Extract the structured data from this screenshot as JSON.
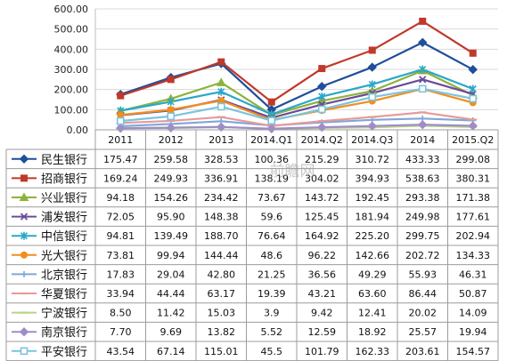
{
  "watermark": "前瞻网",
  "chart_data": {
    "type": "line",
    "title": "",
    "xlabel": "",
    "ylabel": "",
    "categories": [
      "2011",
      "2012",
      "2013",
      "2014.Q1",
      "2014.Q2",
      "2014.Q3",
      "2014",
      "2015.Q2"
    ],
    "ylim": [
      0,
      600
    ],
    "yticks": [
      "0.00",
      "100.00",
      "200.00",
      "300.00",
      "400.00",
      "500.00",
      "600.00"
    ],
    "grid": true,
    "legend": "data-table-left",
    "series": [
      {
        "name": "民生银行",
        "color": "#1f4e9a",
        "marker": "diamond",
        "values": [
          175.47,
          259.58,
          328.53,
          100.36,
          215.29,
          310.72,
          433.33,
          299.08
        ],
        "labels": [
          "175.47",
          "259.58",
          "328.53",
          "100.36",
          "215.29",
          "310.72",
          "433.33",
          "299.08"
        ]
      },
      {
        "name": "招商银行",
        "color": "#c0392b",
        "marker": "square",
        "values": [
          169.24,
          249.93,
          336.91,
          138.19,
          304.02,
          394.93,
          538.63,
          380.31
        ],
        "labels": [
          "169.24",
          "249.93",
          "336.91",
          "138.19",
          "304.02",
          "394.93",
          "538.63",
          "380.31"
        ]
      },
      {
        "name": "兴业银行",
        "color": "#8db33a",
        "marker": "triangle",
        "values": [
          94.18,
          154.26,
          234.42,
          73.67,
          143.72,
          192.45,
          293.38,
          171.38
        ],
        "labels": [
          "94.18",
          "154.26",
          "234.42",
          "73.67",
          "143.72",
          "192.45",
          "293.38",
          "171.38"
        ]
      },
      {
        "name": "浦发银行",
        "color": "#6b4c9a",
        "marker": "x",
        "values": [
          72.05,
          95.9,
          148.38,
          59.6,
          125.45,
          181.94,
          249.98,
          177.61
        ],
        "labels": [
          "72.05",
          "95.90",
          "148.38",
          "59.6",
          "125.45",
          "181.94",
          "249.98",
          "177.61"
        ]
      },
      {
        "name": "中信银行",
        "color": "#2aa7c9",
        "marker": "star",
        "values": [
          94.81,
          139.49,
          188.7,
          76.64,
          164.92,
          225.2,
          299.75,
          202.94
        ],
        "labels": [
          "94.81",
          "139.49",
          "188.70",
          "76.64",
          "164.92",
          "225.20",
          "299.75",
          "202.94"
        ]
      },
      {
        "name": "光大银行",
        "color": "#f28e1c",
        "marker": "circle",
        "values": [
          73.81,
          99.94,
          144.44,
          48.6,
          96.22,
          142.66,
          202.72,
          134.33
        ],
        "labels": [
          "73.81",
          "99.94",
          "144.44",
          "48.6",
          "96.22",
          "142.66",
          "202.72",
          "134.33"
        ]
      },
      {
        "name": "北京银行",
        "color": "#7fa7d8",
        "marker": "plus",
        "values": [
          17.83,
          29.04,
          42.8,
          21.25,
          36.56,
          49.29,
          55.93,
          46.31
        ],
        "labels": [
          "17.83",
          "29.04",
          "42.80",
          "21.25",
          "36.56",
          "49.29",
          "55.93",
          "46.31"
        ]
      },
      {
        "name": "华夏银行",
        "color": "#e79a9a",
        "marker": "dash",
        "values": [
          33.94,
          44.44,
          63.17,
          19.39,
          43.21,
          63.6,
          86.44,
          50.87
        ],
        "labels": [
          "33.94",
          "44.44",
          "63.17",
          "19.39",
          "43.21",
          "63.60",
          "86.44",
          "50.87"
        ]
      },
      {
        "name": "宁波银行",
        "color": "#b5d48a",
        "marker": "dash",
        "values": [
          8.5,
          11.42,
          15.03,
          3.9,
          9.42,
          12.41,
          20.02,
          14.09
        ],
        "labels": [
          "8.50",
          "11.42",
          "15.03",
          "3.9",
          "9.42",
          "12.41",
          "20.02",
          "14.09"
        ]
      },
      {
        "name": "南京银行",
        "color": "#a08cc8",
        "marker": "diamond",
        "values": [
          7.7,
          9.69,
          13.82,
          5.52,
          12.59,
          18.92,
          25.57,
          19.94
        ],
        "labels": [
          "7.70",
          "9.69",
          "13.82",
          "5.52",
          "12.59",
          "18.92",
          "25.57",
          "19.94"
        ]
      },
      {
        "name": "平安银行",
        "color": "#7cc4df",
        "marker": "square-open",
        "values": [
          43.54,
          67.14,
          115.01,
          45.5,
          101.79,
          162.33,
          203.61,
          154.57
        ],
        "labels": [
          "43.54",
          "67.14",
          "115.01",
          "45.5",
          "101.79",
          "162.33",
          "203.61",
          "154.57"
        ]
      }
    ]
  }
}
